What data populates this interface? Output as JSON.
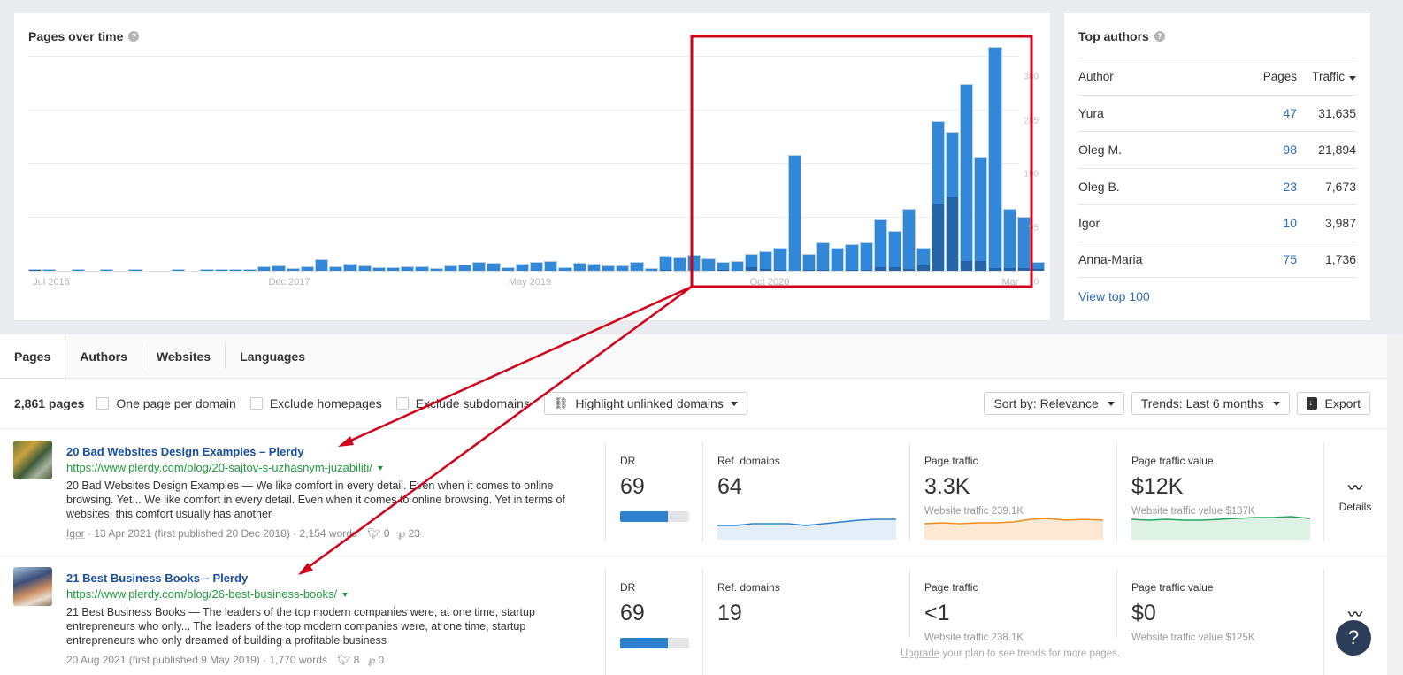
{
  "chart_card": {
    "title": "Pages over time",
    "help_icon": "question-circle-icon"
  },
  "chart_data": {
    "type": "bar",
    "title": "Pages over time",
    "xlabel": "",
    "ylabel": "",
    "ylim": [
      0,
      380
    ],
    "y_ticks": [
      "0",
      "95",
      "190",
      "285",
      "380"
    ],
    "x_tick_labels": [
      "Jul 2016",
      "Dec 2017",
      "May 2019",
      "Oct 2020",
      "Mar"
    ],
    "grid": true,
    "legend": "none",
    "categories_note": "monthly bars from Jul 2016 to Mar (2022)",
    "series": [
      {
        "name": "Pages",
        "color": "#3387d7",
        "values": [
          2,
          2,
          0,
          1,
          0,
          1,
          0,
          1,
          0,
          0,
          1,
          0,
          1,
          1,
          3,
          1,
          8,
          10,
          5,
          8,
          20,
          8,
          12,
          10,
          7,
          7,
          8,
          8,
          5,
          9,
          11,
          16,
          14,
          7,
          12,
          16,
          17,
          7,
          14,
          12,
          10,
          10,
          15,
          5,
          27,
          23,
          28,
          22,
          16,
          17,
          29,
          34,
          40,
          205,
          30,
          50,
          40,
          47,
          50,
          90,
          70,
          110,
          40,
          265,
          245,
          330,
          200,
          395,
          110,
          95,
          15
        ]
      },
      {
        "name": "Unlinked (highlighted)",
        "color": "#255f9c",
        "values": [
          1,
          0,
          0,
          0,
          0,
          0,
          0,
          0,
          0,
          0,
          0,
          0,
          0,
          0,
          0,
          0,
          0,
          0,
          0,
          0,
          0,
          0,
          0,
          0,
          0,
          0,
          0,
          0,
          0,
          0,
          0,
          0,
          0,
          0,
          0,
          0,
          0,
          0,
          0,
          0,
          0,
          0,
          0,
          0,
          2,
          0,
          0,
          0,
          2,
          0,
          6,
          3,
          1,
          0,
          2,
          2,
          0,
          2,
          2,
          7,
          7,
          3,
          9,
          118,
          130,
          17,
          17,
          4,
          4,
          4,
          3
        ]
      }
    ]
  },
  "authors_card": {
    "title": "Top authors",
    "headers": {
      "author": "Author",
      "pages": "Pages",
      "traffic": "Traffic"
    },
    "rows": [
      {
        "author": "Yura",
        "pages": "47",
        "traffic": "31,635"
      },
      {
        "author": "Oleg M.",
        "pages": "98",
        "traffic": "21,894"
      },
      {
        "author": "Oleg B.",
        "pages": "23",
        "traffic": "7,673"
      },
      {
        "author": "Igor",
        "pages": "10",
        "traffic": "3,987"
      },
      {
        "author": "Anna-Maria",
        "pages": "75",
        "traffic": "1,736"
      }
    ],
    "view_link": "View top 100"
  },
  "tabs": [
    {
      "label": "Pages",
      "active": true
    },
    {
      "label": "Authors",
      "active": false
    },
    {
      "label": "Websites",
      "active": false
    },
    {
      "label": "Languages",
      "active": false
    }
  ],
  "filters": {
    "count": "2,861 pages",
    "checkboxes": [
      "One page per domain",
      "Exclude homepages",
      "Exclude subdomains"
    ],
    "highlight_button": "Highlight unlinked domains",
    "sort_button": "Sort by: Relevance",
    "trends_button": "Trends: Last 6 months",
    "export_button": "Export"
  },
  "results": [
    {
      "title": "20 Bad Websites Design Examples – Plerdy",
      "url": "https://www.plerdy.com/blog/20-sajtov-s-uzhasnym-juzabiliti/",
      "description": "20 Bad Websites Design Examples — We like comfort in every detail. Even when it comes to online browsing. Yet... We like comfort in every detail. Even when it comes to online browsing. Yet in terms of websites, this comfort usually has another",
      "author": "Igor",
      "date": "13 Apr 2021 (first published 20 Dec 2018)",
      "words": "2,154 words",
      "twitter": "0",
      "pinterest": "23",
      "dr_label": "DR",
      "dr": "69",
      "dr_pct": 69,
      "ref_label": "Ref. domains",
      "ref_domains": "64",
      "traffic_label": "Page traffic",
      "traffic": "3.3K",
      "website_traffic": "Website traffic 239.1K",
      "value_label": "Page traffic value",
      "value": "$12K",
      "website_value": "Website traffic value $137K",
      "details": "Details"
    },
    {
      "title": "21 Best Business Books – Plerdy",
      "url": "https://www.plerdy.com/blog/26-best-business-books/",
      "description": "21 Best Business Books — The leaders of the top modern companies were, at one time, startup entrepreneurs who only... The leaders of the top modern companies were, at one time, startup entrepreneurs who only dreamed of building a profitable business",
      "date": "20 Aug 2021 (first published 9 May 2019)",
      "words": "1,770 words",
      "twitter": "8",
      "pinterest": "0",
      "dr_label": "DR",
      "dr": "69",
      "dr_pct": 69,
      "ref_label": "Ref. domains",
      "ref_domains": "19",
      "traffic_label": "Page traffic",
      "traffic": "<1",
      "website_traffic": "Website traffic 238.1K",
      "value_label": "Page traffic value",
      "value": "$0",
      "website_value": "Website traffic value $125K"
    }
  ],
  "upgrade": {
    "link": "Upgrade",
    "text": " your plan to see trends for more pages."
  },
  "help_fab": "?",
  "colors": {
    "bar": "#3387d7",
    "bar_dark": "#255f9c",
    "link": "#1a4fa0",
    "url_green": "#1e9a3c",
    "annotation_red": "#d0021b",
    "spark_blue": "#2e80d1",
    "spark_orange": "#f28c1a",
    "spark_green": "#24a35a"
  }
}
